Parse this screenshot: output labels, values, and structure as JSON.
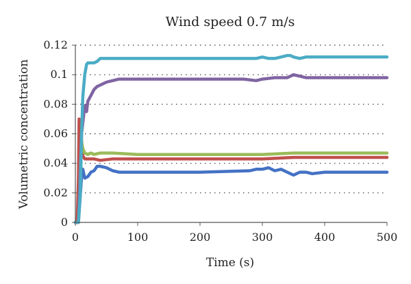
{
  "chart_data": {
    "type": "line",
    "title": "Wind speed 0.7 m/s",
    "xlabel": "Time (s)",
    "ylabel": "Volumetric concentration",
    "xlim": [
      0,
      500
    ],
    "ylim": [
      0,
      0.12
    ],
    "xticks": [
      0,
      100,
      200,
      300,
      400,
      500
    ],
    "yticks": [
      0,
      0.02,
      0.04,
      0.06,
      0.08,
      0.1,
      0.12
    ],
    "xtick_labels": [
      "0",
      "100",
      "200",
      "300",
      "400",
      "500"
    ],
    "ytick_labels": [
      "0",
      "0.02",
      "0.04",
      "0.06",
      "0.08",
      "0.1",
      "0.12"
    ],
    "grid": "horizontal-dotted",
    "series": [
      {
        "color": "#4472c4",
        "x": [
          0,
          5,
          10,
          12,
          15,
          20,
          25,
          30,
          35,
          40,
          50,
          60,
          70,
          100,
          200,
          280,
          290,
          300,
          310,
          320,
          330,
          340,
          350,
          360,
          370,
          380,
          400,
          450,
          500
        ],
        "y": [
          0,
          0,
          0.031,
          0.036,
          0.03,
          0.031,
          0.034,
          0.035,
          0.038,
          0.038,
          0.037,
          0.035,
          0.034,
          0.034,
          0.034,
          0.035,
          0.036,
          0.036,
          0.037,
          0.035,
          0.036,
          0.034,
          0.032,
          0.034,
          0.034,
          0.033,
          0.034,
          0.034,
          0.034
        ]
      },
      {
        "color": "#c0504d",
        "x": [
          0,
          3,
          5,
          6,
          8,
          10,
          12,
          15,
          20,
          30,
          40,
          60,
          100,
          200,
          300,
          350,
          400,
          450,
          500
        ],
        "y": [
          0,
          0,
          0.03,
          0.07,
          0.069,
          0.055,
          0.045,
          0.043,
          0.043,
          0.043,
          0.042,
          0.043,
          0.043,
          0.043,
          0.043,
          0.044,
          0.044,
          0.044,
          0.044
        ]
      },
      {
        "color": "#9bbb59",
        "x": [
          0,
          5,
          8,
          10,
          12,
          15,
          20,
          25,
          30,
          40,
          60,
          100,
          200,
          300,
          350,
          400,
          450,
          500
        ],
        "y": [
          0,
          0,
          0.04,
          0.055,
          0.05,
          0.047,
          0.046,
          0.047,
          0.046,
          0.047,
          0.047,
          0.046,
          0.046,
          0.046,
          0.047,
          0.047,
          0.047,
          0.047
        ]
      },
      {
        "color": "#8064a2",
        "x": [
          0,
          5,
          10,
          15,
          18,
          20,
          25,
          30,
          35,
          40,
          50,
          60,
          70,
          80,
          100,
          150,
          200,
          270,
          290,
          300,
          320,
          340,
          350,
          360,
          370,
          400,
          450,
          500
        ],
        "y": [
          0,
          0,
          0.06,
          0.079,
          0.075,
          0.082,
          0.086,
          0.09,
          0.092,
          0.093,
          0.095,
          0.096,
          0.097,
          0.097,
          0.097,
          0.097,
          0.097,
          0.097,
          0.096,
          0.097,
          0.098,
          0.098,
          0.1,
          0.099,
          0.098,
          0.098,
          0.098,
          0.098
        ]
      },
      {
        "color": "#4bacc6",
        "x": [
          0,
          5,
          8,
          10,
          12,
          15,
          18,
          20,
          25,
          30,
          35,
          40,
          50,
          60,
          70,
          100,
          200,
          290,
          300,
          310,
          320,
          330,
          340,
          345,
          350,
          360,
          370,
          400,
          450,
          500
        ],
        "y": [
          0,
          0,
          0.02,
          0.06,
          0.085,
          0.1,
          0.107,
          0.108,
          0.108,
          0.108,
          0.109,
          0.111,
          0.111,
          0.111,
          0.111,
          0.111,
          0.111,
          0.111,
          0.112,
          0.111,
          0.111,
          0.112,
          0.113,
          0.113,
          0.112,
          0.111,
          0.112,
          0.112,
          0.112,
          0.112
        ]
      }
    ]
  }
}
